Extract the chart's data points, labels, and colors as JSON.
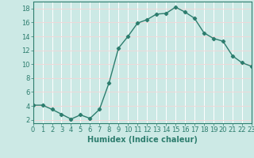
{
  "x": [
    0,
    1,
    2,
    3,
    4,
    5,
    6,
    7,
    8,
    9,
    10,
    11,
    12,
    13,
    14,
    15,
    16,
    17,
    18,
    19,
    20,
    21,
    22,
    23
  ],
  "y": [
    4.1,
    4.1,
    3.5,
    2.8,
    2.1,
    2.7,
    2.2,
    3.5,
    7.3,
    12.3,
    14.0,
    15.9,
    16.4,
    17.2,
    17.3,
    18.2,
    17.5,
    16.6,
    14.5,
    13.7,
    13.3,
    11.2,
    10.2,
    9.7
  ],
  "line_color": "#2d7d6e",
  "marker": "D",
  "marker_size": 2.2,
  "bg_color": "#cce9e5",
  "grid_color_h": "#f0d8d8",
  "grid_color_v": "#ffffff",
  "xlabel": "Humidex (Indice chaleur)",
  "xlim": [
    0,
    23
  ],
  "ylim": [
    1.5,
    19
  ],
  "yticks": [
    2,
    4,
    6,
    8,
    10,
    12,
    14,
    16,
    18
  ],
  "xticks": [
    0,
    1,
    2,
    3,
    4,
    5,
    6,
    7,
    8,
    9,
    10,
    11,
    12,
    13,
    14,
    15,
    16,
    17,
    18,
    19,
    20,
    21,
    22,
    23
  ],
  "tick_color": "#2d7d6e",
  "axis_color": "#2d7d6e",
  "label_fontsize": 7,
  "tick_fontsize": 6
}
